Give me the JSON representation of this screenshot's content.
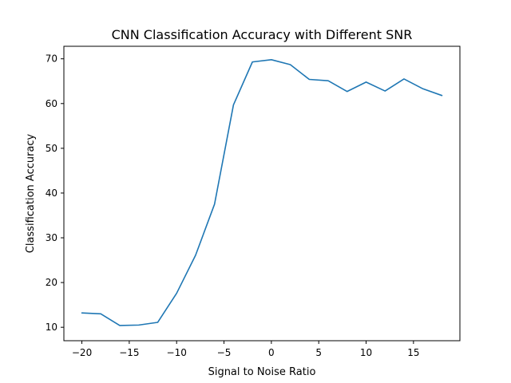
{
  "chart_data": {
    "type": "line",
    "title": "CNN Classification Accuracy with Different SNR",
    "xlabel": "Signal to Noise Ratio",
    "ylabel": "Classification Accuracy",
    "xlim": [
      -21.9,
      19.9
    ],
    "ylim": [
      7.0,
      72.8
    ],
    "xticks": [
      -20,
      -15,
      -10,
      -5,
      0,
      5,
      10,
      15
    ],
    "xtick_labels": [
      "−20",
      "−15",
      "−10",
      "−5",
      "0",
      "5",
      "10",
      "15"
    ],
    "yticks": [
      10,
      20,
      30,
      40,
      50,
      60,
      70
    ],
    "ytick_labels": [
      "10",
      "20",
      "30",
      "40",
      "50",
      "60",
      "70"
    ],
    "grid": false,
    "series": [
      {
        "color": "#1f77b4",
        "x": [
          -20,
          -18,
          -16,
          -14,
          -12,
          -10,
          -8,
          -6,
          -4,
          -2,
          0,
          2,
          4,
          6,
          8,
          10,
          12,
          14,
          16,
          18
        ],
        "y": [
          13.2,
          13.0,
          10.4,
          10.5,
          11.1,
          17.6,
          26.1,
          37.5,
          59.7,
          69.3,
          69.8,
          68.7,
          65.4,
          65.1,
          62.7,
          64.8,
          62.8,
          65.5,
          63.3,
          61.8
        ]
      }
    ]
  }
}
